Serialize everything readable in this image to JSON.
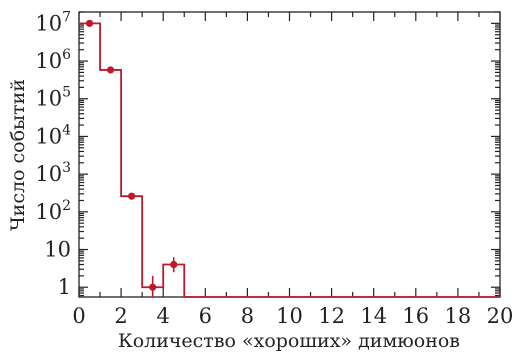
{
  "chart_data": {
    "type": "step-histogram",
    "xlabel": "Количество «хороших» димюонов",
    "ylabel": "Число событий",
    "x_ticks": [
      "0",
      "2",
      "4",
      "6",
      "8",
      "10",
      "12",
      "14",
      "16",
      "18",
      "20"
    ],
    "y_ticks": [
      {
        "value": 1,
        "base": "1",
        "exp": ""
      },
      {
        "value": 10,
        "base": "10",
        "exp": ""
      },
      {
        "value": 100,
        "base": "10",
        "exp": "2"
      },
      {
        "value": 1000,
        "base": "10",
        "exp": "3"
      },
      {
        "value": 10000,
        "base": "10",
        "exp": "4"
      },
      {
        "value": 100000,
        "base": "10",
        "exp": "5"
      },
      {
        "value": 1000000,
        "base": "10",
        "exp": "6"
      },
      {
        "value": 10000000,
        "base": "10",
        "exp": "7"
      }
    ],
    "xlim": [
      0,
      20
    ],
    "ylim": [
      0.55,
      20000000
    ],
    "log_y": true,
    "bin_edges": [
      0,
      1,
      2,
      3,
      4,
      5,
      6,
      7,
      8,
      9,
      10,
      11,
      12,
      13,
      14,
      15,
      16,
      17,
      18,
      19,
      20
    ],
    "step_values": [
      10000000,
      580000,
      260,
      1,
      4,
      0.55,
      0.55,
      0.55,
      0.55,
      0.55,
      0.55,
      0.55,
      0.55,
      0.55,
      0.55,
      0.55,
      0.55,
      0.55,
      0.55,
      0.55
    ],
    "points": [
      {
        "x": 0.5,
        "y": 10000000,
        "err_low": 0,
        "err_high": 0
      },
      {
        "x": 1.5,
        "y": 580000,
        "err_low": 0,
        "err_high": 0
      },
      {
        "x": 2.5,
        "y": 260,
        "err_low": 0,
        "err_high": 0
      },
      {
        "x": 3.5,
        "y": 1,
        "err_low": 0.55,
        "err_high": 2
      },
      {
        "x": 4.5,
        "y": 4,
        "err_low": 2.5,
        "err_high": 6.2
      }
    ],
    "colors": {
      "histogram": "#c0182a",
      "points": "#c0182a",
      "axes": "#222222"
    }
  }
}
